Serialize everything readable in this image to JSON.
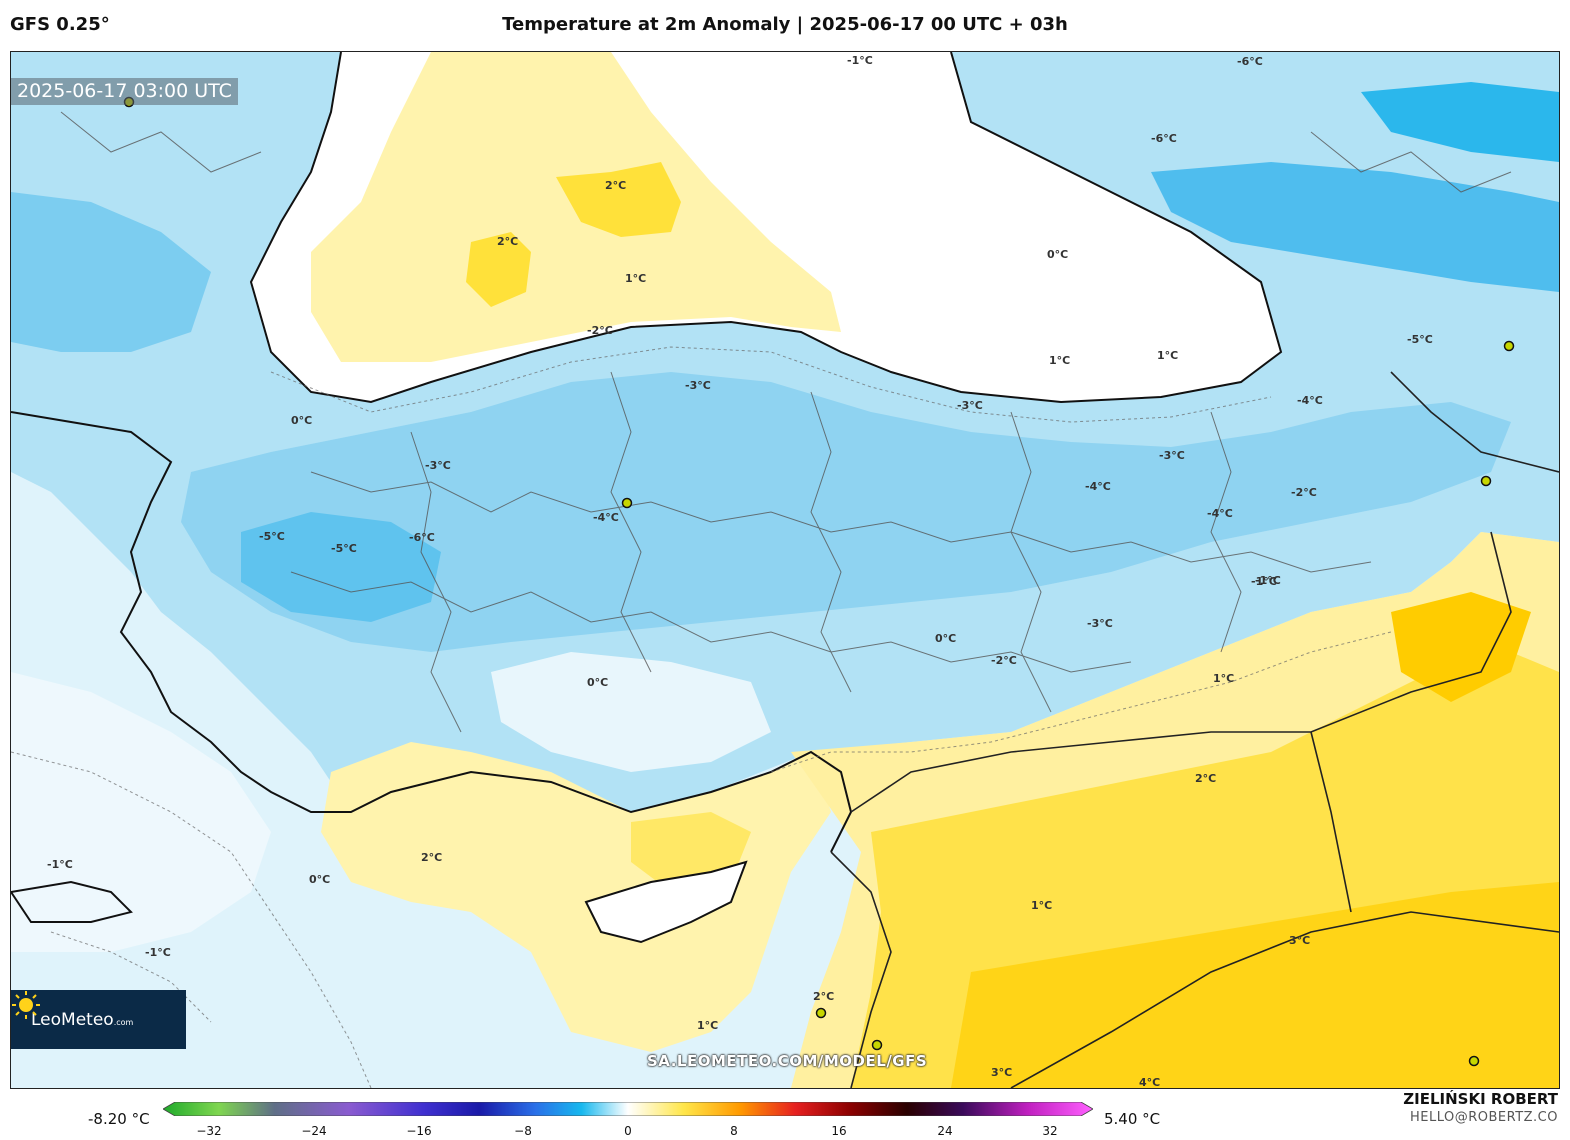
{
  "header": {
    "model": "GFS 0.25°",
    "title": "Temperature at 2m Anomaly | 2025-06-17 00 UTC + 03h"
  },
  "map": {
    "timestamp": "2025-06-17 03:00 UTC",
    "watermark": "SA.LEOMETEO.COM/MODEL/GFS",
    "logo": {
      "brand": "LeoMeteo",
      "suffix": ".com"
    },
    "contour_labels": [
      "2°C",
      "2°C",
      "1°C",
      "0°C",
      "-1°C",
      "-2°C",
      "-3°C",
      "-4°C",
      "-5°C",
      "-6°C",
      "1°C",
      "1°C",
      "0°C",
      "-3°C",
      "-4°C",
      "-3°C",
      "-2°C",
      "-4°C",
      "-3°C",
      "-6°C",
      "-5°C",
      "-4°C",
      "-3°C",
      "-2°C",
      "-1°C",
      "0°C",
      "1°C",
      "2°C",
      "3°C",
      "-1°C",
      "0°C",
      "1°C",
      "2°C",
      "0°C",
      "-1°C",
      "-1°C",
      "1°C",
      "2°C",
      "3°C",
      "4°C",
      "-5°C",
      "-6°C"
    ],
    "colors": {
      "sea_cool": "#d9f1fb",
      "land_cold": "#a8dcf3",
      "cold_strong": "#6ec8ef",
      "cold_extreme": "#22b5ec",
      "neutral": "#ffffff",
      "warm_light": "#fff5b5",
      "warm": "#ffe866",
      "warm_strong": "#ffd21a"
    }
  },
  "legend": {
    "min_label": "-8.20 °C",
    "max_label": "5.40 °C",
    "ticks": [
      "−32",
      "−24",
      "−16",
      "−8",
      "0",
      "8",
      "16",
      "24",
      "32"
    ],
    "tick_values": [
      -32,
      -24,
      -16,
      -8,
      0,
      8,
      16,
      24,
      32
    ],
    "range": [
      -34,
      34
    ]
  },
  "credits": {
    "author": "ZIELIŃSKI ROBERT",
    "email": "HELLO@ROBERTZ.CO"
  }
}
